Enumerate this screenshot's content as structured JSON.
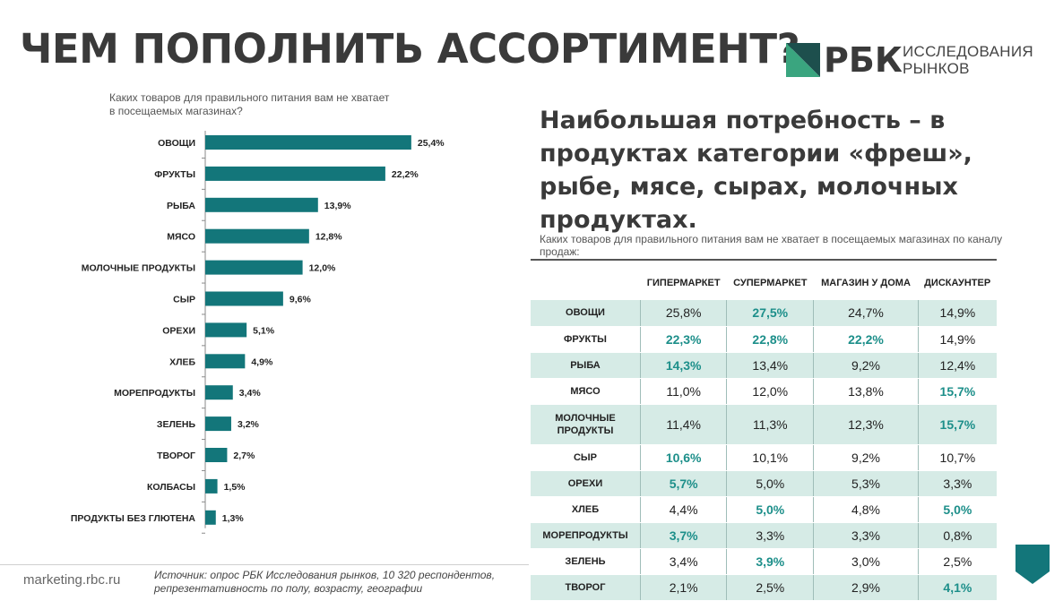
{
  "header": {
    "title": "ЧЕМ ПОПОЛНИТЬ АССОРТИМЕНТ?",
    "logo_name": "РБК",
    "logo_sub_1": "ИССЛЕДОВАНИЯ",
    "logo_sub_2": "РЫНКОВ"
  },
  "colors": {
    "accent": "#13767a",
    "brand_green": "#3aa57f",
    "brand_dark": "#1d4f4d",
    "table_shade": "#d6ebe6",
    "table_highlight": "#1d8f8a"
  },
  "chart_data": {
    "type": "bar",
    "orientation": "horizontal",
    "title": "Каких товаров для правильного питания вам не хватает в посещаемых магазинах?",
    "categories": [
      "ОВОЩИ",
      "ФРУКТЫ",
      "РЫБА",
      "МЯСО",
      "МОЛОЧНЫЕ ПРОДУКТЫ",
      "СЫР",
      "ОРЕХИ",
      "ХЛЕБ",
      "МОРЕПРОДУКТЫ",
      "ЗЕЛЕНЬ",
      "ТВОРОГ",
      "КОЛБАСЫ",
      "ПРОДУКТЫ БЕЗ ГЛЮТЕНА"
    ],
    "values": [
      25.4,
      22.2,
      13.9,
      12.8,
      12.0,
      9.6,
      5.1,
      4.9,
      3.4,
      3.2,
      2.7,
      1.5,
      1.3
    ],
    "value_labels": [
      "25,4%",
      "22,2%",
      "13,9%",
      "12,8%",
      "12,0%",
      "9,6%",
      "5,1%",
      "4,9%",
      "3,4%",
      "3,2%",
      "2,7%",
      "1,5%",
      "1,3%"
    ],
    "xlim": [
      0,
      30
    ],
    "color": "#13767a",
    "grid": false
  },
  "right": {
    "headline": "Наибольшая потребность – в продуктах категории «фреш», рыбе, мясе, сырах, молочных продуктах.",
    "table_question": "Каких товаров для правильного питания вам не хватает в посещаемых магазинах по каналу продаж:"
  },
  "table": {
    "columns": [
      "ГИПЕРМАРКЕТ",
      "СУПЕРМАРКЕТ",
      "МАГАЗИН У ДОМА",
      "ДИСКАУНТЕР"
    ],
    "rows": [
      {
        "label": "ОВОЩИ",
        "cells": [
          "25,8%",
          "27,5%",
          "24,7%",
          "14,9%"
        ]
      },
      {
        "label": "ФРУКТЫ",
        "cells": [
          "22,3%",
          "22,8%",
          "22,2%",
          "14,9%"
        ]
      },
      {
        "label": "РЫБА",
        "cells": [
          "14,3%",
          "13,4%",
          "9,2%",
          "12,4%"
        ]
      },
      {
        "label": "МЯСО",
        "cells": [
          "11,0%",
          "12,0%",
          "13,8%",
          "15,7%"
        ]
      },
      {
        "label": "МОЛОЧНЫЕ ПРОДУКТЫ",
        "cells": [
          "11,4%",
          "11,3%",
          "12,3%",
          "15,7%"
        ]
      },
      {
        "label": "СЫР",
        "cells": [
          "10,6%",
          "10,1%",
          "9,2%",
          "10,7%"
        ]
      },
      {
        "label": "ОРЕХИ",
        "cells": [
          "5,7%",
          "5,0%",
          "5,3%",
          "3,3%"
        ]
      },
      {
        "label": "ХЛЕБ",
        "cells": [
          "4,4%",
          "5,0%",
          "4,8%",
          "5,0%"
        ]
      },
      {
        "label": "МОРЕПРОДУКТЫ",
        "cells": [
          "3,7%",
          "3,3%",
          "3,3%",
          "0,8%"
        ]
      },
      {
        "label": "ЗЕЛЕНЬ",
        "cells": [
          "3,4%",
          "3,9%",
          "3,0%",
          "2,5%"
        ]
      },
      {
        "label": "ТВОРОГ",
        "cells": [
          "2,1%",
          "2,5%",
          "2,9%",
          "4,1%"
        ]
      }
    ],
    "highlighted": [
      [
        0,
        1
      ],
      [
        1,
        0
      ],
      [
        1,
        1
      ],
      [
        1,
        2
      ],
      [
        2,
        0
      ],
      [
        3,
        3
      ],
      [
        4,
        3
      ],
      [
        5,
        0
      ],
      [
        6,
        0
      ],
      [
        7,
        1
      ],
      [
        7,
        3
      ],
      [
        8,
        0
      ],
      [
        9,
        1
      ],
      [
        10,
        3
      ]
    ],
    "shaded_rows": [
      0,
      2,
      4,
      6,
      8,
      10
    ]
  },
  "footer": {
    "link": "marketing.rbc.ru",
    "source_1": "Источник: опрос РБК Исследования рынков, 10 320 респондентов,",
    "source_2": "репрезентативность по полу, возрасту, географии"
  }
}
